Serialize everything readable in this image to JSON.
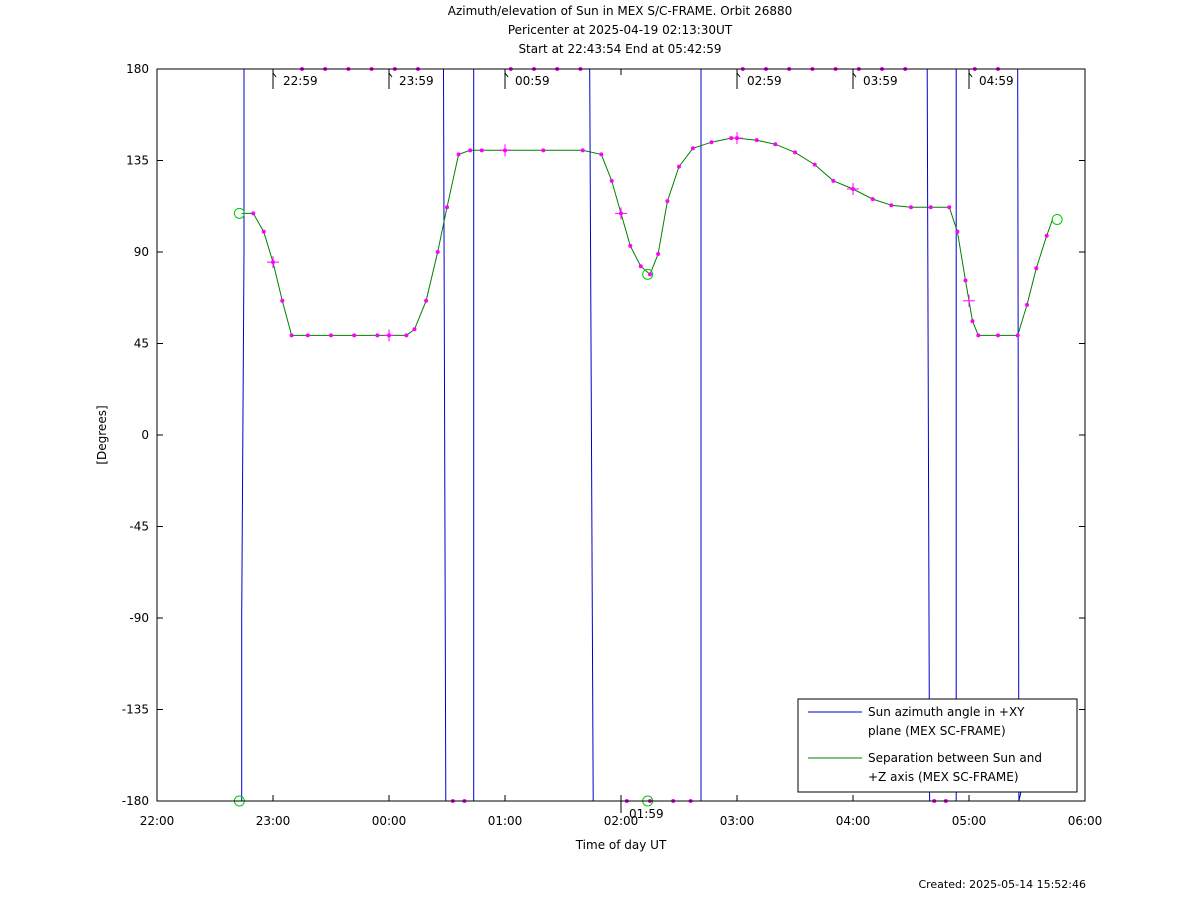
{
  "title": {
    "line1": "Azimuth/elevation of Sun in MEX S/C-FRAME.  Orbit 26880",
    "line2": "Pericenter at 2025-04-19 02:13:30UT",
    "line3": "Start at 22:43:54 End at 05:42:59"
  },
  "created": "Created: 2025-05-14 15:52:46",
  "colors": {
    "azimuth": "#0000cc",
    "separation": "#008000",
    "markers": "#ff00ff",
    "circles": "#00cc00"
  },
  "chart_data": {
    "type": "line",
    "xlabel": "Time of day UT",
    "ylabel": "[Degrees]",
    "x_unit": "hours since 22:00",
    "xlim": [
      0,
      8
    ],
    "ylim": [
      -180,
      180
    ],
    "x_ticks": [
      {
        "v": 0,
        "label": "22:00"
      },
      {
        "v": 1,
        "label": "23:00"
      },
      {
        "v": 2,
        "label": "00:00"
      },
      {
        "v": 3,
        "label": "01:00"
      },
      {
        "v": 4,
        "label": "02:00"
      },
      {
        "v": 5,
        "label": "03:00"
      },
      {
        "v": 6,
        "label": "04:00"
      },
      {
        "v": 7,
        "label": "05:00"
      },
      {
        "v": 8,
        "label": "06:00"
      }
    ],
    "y_ticks": [
      {
        "v": 180,
        "label": "180"
      },
      {
        "v": 135,
        "label": "135"
      },
      {
        "v": 90,
        "label": "90"
      },
      {
        "v": 45,
        "label": "45"
      },
      {
        "v": 0,
        "label": "0"
      },
      {
        "v": -45,
        "label": "-45"
      },
      {
        "v": -90,
        "label": "-90"
      },
      {
        "v": -135,
        "label": "-135"
      },
      {
        "v": -180,
        "label": "-180"
      }
    ],
    "legend_position": "bottom-right",
    "series": [
      {
        "name": "Sun azimuth angle in +XY plane (MEX SC-FRAME)",
        "legend_lines": [
          "Sun azimuth angle in +XY",
          "plane (MEX SC-FRAME)"
        ],
        "color": "#0000cc",
        "x": [
          0.73,
          0.73,
          0.75,
          0.75,
          2.47,
          2.49,
          2.49,
          2.71,
          2.73,
          2.73,
          3.73,
          3.76,
          3.76,
          4.67,
          4.69,
          4.69,
          6.64,
          6.66,
          6.66,
          6.87,
          6.89,
          6.89,
          7.42,
          7.43,
          7.43,
          7.45
        ],
        "y": [
          -180,
          -90,
          90,
          180,
          180,
          -180,
          -180,
          -180,
          -180,
          180,
          180,
          -180,
          -180,
          -180,
          -180,
          180,
          180,
          -180,
          -180,
          -180,
          -180,
          180,
          180,
          -180,
          -180,
          -175
        ]
      },
      {
        "name": "Separation between Sun and +Z axis (MEX SC-FRAME)",
        "legend_lines": [
          "Separation between Sun and",
          "+Z axis (MEX SC-FRAME)"
        ],
        "color": "#008000",
        "x": [
          0.73,
          0.83,
          0.92,
          1.0,
          1.08,
          1.16,
          1.3,
          1.5,
          1.7,
          1.9,
          2.0,
          2.15,
          2.22,
          2.32,
          2.42,
          2.5,
          2.6,
          2.7,
          2.8,
          3.0,
          3.33,
          3.67,
          3.83,
          3.92,
          4.0,
          4.08,
          4.17,
          4.25,
          4.32,
          4.4,
          4.5,
          4.62,
          4.78,
          4.95,
          5.0,
          5.17,
          5.33,
          5.5,
          5.67,
          5.83,
          6.0,
          6.17,
          6.33,
          6.5,
          6.67,
          6.83,
          6.9,
          6.97,
          7.03,
          7.08,
          7.25,
          7.42,
          7.5,
          7.58,
          7.67,
          7.72
        ],
        "y": [
          109,
          109,
          100,
          85,
          66,
          49,
          49,
          49,
          49,
          49,
          49,
          49,
          52,
          66,
          90,
          112,
          138,
          140,
          140,
          140,
          140,
          140,
          138,
          125,
          109,
          93,
          83,
          79,
          89,
          115,
          132,
          141,
          144,
          146,
          146,
          145,
          143,
          139,
          133,
          125,
          121,
          116,
          113,
          112,
          112,
          112,
          100,
          76,
          56,
          49,
          49,
          49,
          64,
          82,
          98,
          106
        ]
      }
    ],
    "time_labels_top": [
      "22:59",
      "23:59",
      "00:59",
      "02:59",
      "03:59",
      "04:59"
    ],
    "time_label_bottom": "01:59"
  }
}
